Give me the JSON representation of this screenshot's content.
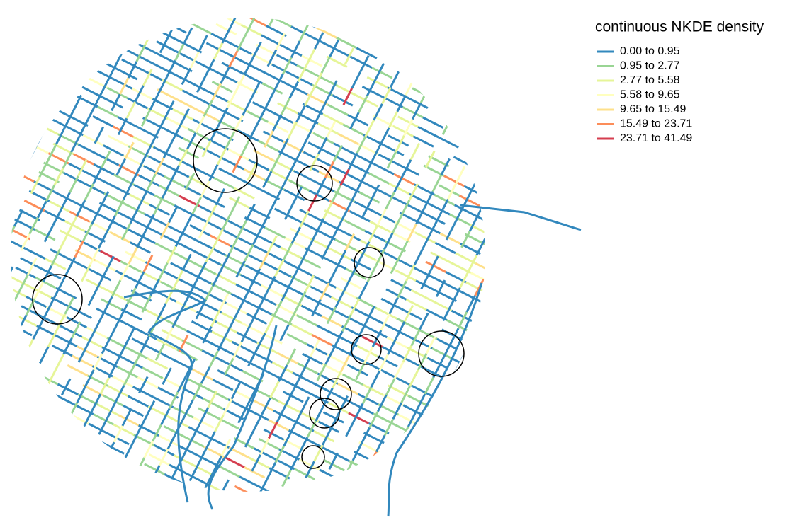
{
  "legend": {
    "title": "continuous NKDE density",
    "items": [
      {
        "label": "0.00 to 0.95",
        "color": "#3288bd"
      },
      {
        "label": "0.95 to 2.77",
        "color": "#99d594"
      },
      {
        "label": "2.77 to 5.58",
        "color": "#e6f598"
      },
      {
        "label": "5.58 to 9.65",
        "color": "#ffffbf"
      },
      {
        "label": "9.65 to 15.49",
        "color": "#fee08b"
      },
      {
        "label": "15.49 to 23.71",
        "color": "#fc8d59"
      },
      {
        "label": "23.71 to 41.49",
        "color": "#d53e4f"
      }
    ]
  }
}
